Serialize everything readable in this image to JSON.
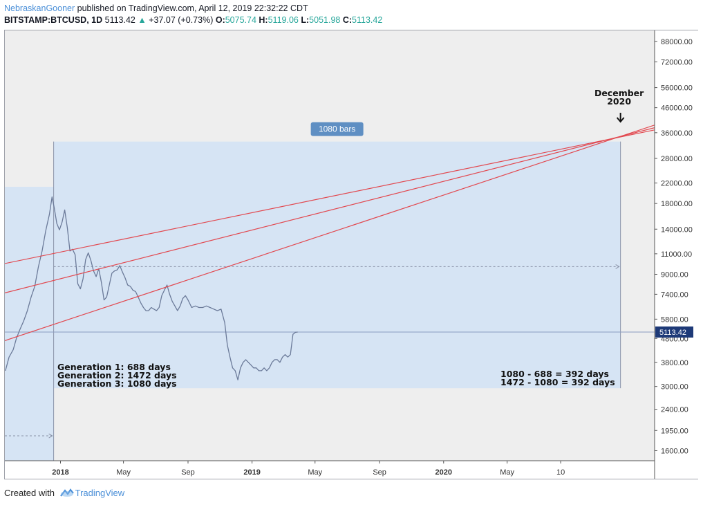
{
  "header": {
    "author": "NebraskanGooner",
    "published_text": "published on TradingView.com, April 12, 2019 22:32:22 CDT",
    "symbol": "BITSTAMP:BTCUSD, 1D",
    "last_price": "5113.42",
    "change": "+37.07 (+0.73%)",
    "open_label": "O:",
    "open": "5075.74",
    "high_label": "H:",
    "high": "5119.06",
    "low_label": "L:",
    "low": "5051.98",
    "close_label": "C:",
    "close": "5113.42"
  },
  "footer": {
    "created_with": "Created with",
    "brand": "TradingView"
  },
  "colors": {
    "chart_bg": "#eeeeee",
    "highlight_box": "#d6e4f4",
    "price_line": "#6b7a99",
    "trend_line": "#e2484f",
    "current_price_tag": "#1e3a78",
    "bars_badge": "#5f8fc3"
  },
  "chart_data": {
    "type": "line",
    "title": "BITSTAMP:BTCUSD, 1D",
    "y_scale": "log",
    "y_ticks": [
      88000,
      72000,
      56000,
      46000,
      36000,
      28000,
      22000,
      18000,
      14000,
      11000,
      9000,
      7400,
      5800,
      4800,
      3800,
      3000,
      2400,
      1950,
      1600
    ],
    "y_tick_labels": [
      "88000.00",
      "72000.00",
      "56000.00",
      "46000.00",
      "36000.00",
      "28000.00",
      "22000.00",
      "18000.00",
      "14000.00",
      "11000.00",
      "9000.00",
      "7400.00",
      "5800.00",
      "4800.00",
      "3800.00",
      "3000.00",
      "2400.00",
      "1950.00",
      "1600.00"
    ],
    "x_ticks": [
      {
        "label": "2018",
        "day": 0,
        "bold": true
      },
      {
        "label": "May",
        "day": 120,
        "bold": false
      },
      {
        "label": "Sep",
        "day": 243,
        "bold": false
      },
      {
        "label": "2019",
        "day": 365,
        "bold": true
      },
      {
        "label": "May",
        "day": 485,
        "bold": false
      },
      {
        "label": "Sep",
        "day": 608,
        "bold": false
      },
      {
        "label": "2020",
        "day": 730,
        "bold": true
      },
      {
        "label": "May",
        "day": 851,
        "bold": false
      },
      {
        "label": "10",
        "day": 953,
        "bold": false
      }
    ],
    "x_range_days": [
      -106,
      1132
    ],
    "y_range": [
      1450,
      98000
    ],
    "series": [
      {
        "name": "BTCUSD close",
        "points": [
          [
            -105,
            3500
          ],
          [
            -98,
            4000
          ],
          [
            -90,
            4300
          ],
          [
            -84,
            4800
          ],
          [
            -78,
            5200
          ],
          [
            -70,
            5700
          ],
          [
            -63,
            6300
          ],
          [
            -56,
            7200
          ],
          [
            -49,
            8000
          ],
          [
            -42,
            9700
          ],
          [
            -35,
            11300
          ],
          [
            -28,
            13800
          ],
          [
            -21,
            16200
          ],
          [
            -16,
            19200
          ],
          [
            -12,
            17300
          ],
          [
            -7,
            14800
          ],
          [
            -2,
            13900
          ],
          [
            3,
            15000
          ],
          [
            8,
            16900
          ],
          [
            13,
            14200
          ],
          [
            18,
            11300
          ],
          [
            23,
            11500
          ],
          [
            28,
            10900
          ],
          [
            33,
            8200
          ],
          [
            38,
            7800
          ],
          [
            43,
            8600
          ],
          [
            48,
            10400
          ],
          [
            53,
            11100
          ],
          [
            58,
            10300
          ],
          [
            63,
            9300
          ],
          [
            68,
            8800
          ],
          [
            73,
            9500
          ],
          [
            78,
            8300
          ],
          [
            83,
            7000
          ],
          [
            88,
            7200
          ],
          [
            93,
            8100
          ],
          [
            98,
            9100
          ],
          [
            103,
            9300
          ],
          [
            108,
            9400
          ],
          [
            113,
            9800
          ],
          [
            118,
            9200
          ],
          [
            123,
            8700
          ],
          [
            128,
            8100
          ],
          [
            133,
            8000
          ],
          [
            138,
            7700
          ],
          [
            143,
            7600
          ],
          [
            148,
            7200
          ],
          [
            153,
            6800
          ],
          [
            158,
            6500
          ],
          [
            163,
            6300
          ],
          [
            168,
            6300
          ],
          [
            173,
            6500
          ],
          [
            178,
            6400
          ],
          [
            183,
            6300
          ],
          [
            188,
            6500
          ],
          [
            193,
            7300
          ],
          [
            198,
            7700
          ],
          [
            203,
            8100
          ],
          [
            208,
            7400
          ],
          [
            213,
            6900
          ],
          [
            218,
            6600
          ],
          [
            223,
            6300
          ],
          [
            228,
            6600
          ],
          [
            233,
            7100
          ],
          [
            238,
            7300
          ],
          [
            243,
            7000
          ],
          [
            250,
            6500
          ],
          [
            257,
            6600
          ],
          [
            264,
            6500
          ],
          [
            271,
            6500
          ],
          [
            278,
            6600
          ],
          [
            285,
            6500
          ],
          [
            292,
            6400
          ],
          [
            299,
            6300
          ],
          [
            306,
            6400
          ],
          [
            313,
            5600
          ],
          [
            318,
            4500
          ],
          [
            323,
            4000
          ],
          [
            328,
            3600
          ],
          [
            333,
            3500
          ],
          [
            338,
            3200
          ],
          [
            343,
            3600
          ],
          [
            348,
            3800
          ],
          [
            353,
            3900
          ],
          [
            358,
            3800
          ],
          [
            363,
            3700
          ],
          [
            368,
            3600
          ],
          [
            373,
            3600
          ],
          [
            378,
            3500
          ],
          [
            383,
            3500
          ],
          [
            388,
            3600
          ],
          [
            393,
            3500
          ],
          [
            398,
            3600
          ],
          [
            403,
            3800
          ],
          [
            408,
            3900
          ],
          [
            413,
            3900
          ],
          [
            418,
            3800
          ],
          [
            423,
            4000
          ],
          [
            428,
            4100
          ],
          [
            433,
            4000
          ],
          [
            438,
            4100
          ],
          [
            443,
            5000
          ],
          [
            448,
            5100
          ],
          [
            452,
            5113
          ]
        ]
      }
    ],
    "trend_lines": [
      {
        "from_day": -106,
        "from_price": 10000,
        "to_day": 1132,
        "to_price": 37000
      },
      {
        "from_day": -106,
        "from_price": 7500,
        "to_day": 1132,
        "to_price": 37800
      },
      {
        "from_day": -106,
        "from_price": 4700,
        "to_day": 1132,
        "to_price": 38800
      }
    ],
    "date_range_box": {
      "start_day": -13,
      "end_day": 1067,
      "top_price": 33000,
      "bottom_price": 2950,
      "label": "1080 bars"
    },
    "prior_box": {
      "start_day": -106,
      "end_day": -13,
      "top_price": 21200,
      "bottom_price": 1450
    },
    "mid_line_price": 9700,
    "prior_mid_line_price": 1850,
    "current_price": 5113.42,
    "current_price_label": "5113.42",
    "annotations": {
      "generations": [
        "Generation 1: 688 days",
        "Generation 2: 1472 days",
        "Generation 3: 1080 days"
      ],
      "math": [
        "1080 - 688 = 392 days",
        "1472 - 1080 = 392 days"
      ],
      "target": [
        "December",
        "2020"
      ],
      "target_day": 1067,
      "target_price": 33000
    }
  }
}
